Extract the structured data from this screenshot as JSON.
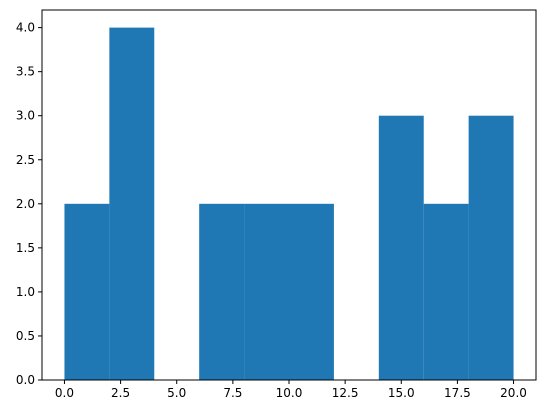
{
  "chart_data": {
    "type": "bar",
    "subtype": "histogram",
    "bins": [
      {
        "x0": 0,
        "x1": 2,
        "count": 2
      },
      {
        "x0": 2,
        "x1": 4,
        "count": 4
      },
      {
        "x0": 4,
        "x1": 6,
        "count": 0
      },
      {
        "x0": 6,
        "x1": 8,
        "count": 2
      },
      {
        "x0": 8,
        "x1": 10,
        "count": 2
      },
      {
        "x0": 10,
        "x1": 12,
        "count": 2
      },
      {
        "x0": 12,
        "x1": 14,
        "count": 0
      },
      {
        "x0": 14,
        "x1": 16,
        "count": 3
      },
      {
        "x0": 16,
        "x1": 18,
        "count": 2
      },
      {
        "x0": 18,
        "x1": 20,
        "count": 3
      }
    ],
    "xlim": [
      -1,
      21
    ],
    "ylim": [
      0,
      4.2
    ],
    "x_ticks": [
      0.0,
      2.5,
      5.0,
      7.5,
      10.0,
      12.5,
      15.0,
      17.5,
      20.0
    ],
    "x_tick_labels": [
      "0.0",
      "2.5",
      "5.0",
      "7.5",
      "10.0",
      "12.5",
      "15.0",
      "17.5",
      "20.0"
    ],
    "y_ticks": [
      0.0,
      0.5,
      1.0,
      1.5,
      2.0,
      2.5,
      3.0,
      3.5,
      4.0
    ],
    "y_tick_labels": [
      "0.0",
      "0.5",
      "1.0",
      "1.5",
      "2.0",
      "2.5",
      "3.0",
      "3.5",
      "4.0"
    ],
    "grid": false,
    "bar_color": "#1f77b4",
    "title": "",
    "xlabel": "",
    "ylabel": ""
  }
}
